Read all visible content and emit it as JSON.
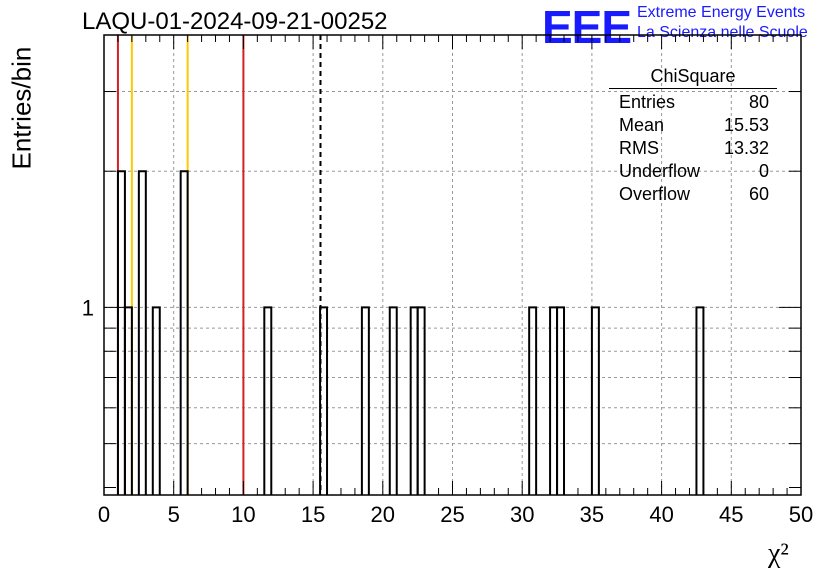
{
  "title": "LAQU-01-2024-09-21-00252",
  "logo": {
    "letters": "EEE",
    "line1": "Extreme Energy Events",
    "line2": "La Scienza nelle Scuole"
  },
  "stats_box": {
    "name": "ChiSquare",
    "rows": [
      {
        "label": "Entries",
        "value": "80"
      },
      {
        "label": "Mean",
        "value": "15.53"
      },
      {
        "label": "RMS",
        "value": "13.32"
      },
      {
        "label": "Underflow",
        "value": "0"
      },
      {
        "label": "Overflow",
        "value": "60"
      }
    ]
  },
  "chart_data": {
    "type": "bar",
    "histogram": "step",
    "title": "LAQU-01-2024-09-21-00252",
    "xlabel": "χ²",
    "ylabel": "Entries/bin",
    "xlim": [
      0,
      50
    ],
    "ylim": [
      0.385,
      4.0
    ],
    "y_log_scale": true,
    "grid": true,
    "x_ticks": [
      0,
      5,
      10,
      15,
      20,
      25,
      30,
      35,
      40,
      45,
      50
    ],
    "y_tick_labels": [
      1
    ],
    "bin_width": 0.5,
    "bins": [
      {
        "x": 1.0,
        "count": 2
      },
      {
        "x": 1.5,
        "count": 1
      },
      {
        "x": 2.5,
        "count": 2
      },
      {
        "x": 3.5,
        "count": 1
      },
      {
        "x": 5.5,
        "count": 2
      },
      {
        "x": 11.5,
        "count": 1
      },
      {
        "x": 15.5,
        "count": 1
      },
      {
        "x": 18.5,
        "count": 1
      },
      {
        "x": 20.5,
        "count": 1
      },
      {
        "x": 22.0,
        "count": 1
      },
      {
        "x": 22.5,
        "count": 1
      },
      {
        "x": 30.5,
        "count": 1
      },
      {
        "x": 32.0,
        "count": 1
      },
      {
        "x": 32.5,
        "count": 1
      },
      {
        "x": 35.0,
        "count": 1
      },
      {
        "x": 42.5,
        "count": 1
      }
    ],
    "vertical_lines": [
      {
        "x": 1.0,
        "color": "#d42020",
        "style": "solid"
      },
      {
        "x": 2.0,
        "color": "#ffc800",
        "style": "solid"
      },
      {
        "x": 6.0,
        "color": "#ffc800",
        "style": "solid"
      },
      {
        "x": 10.0,
        "color": "#d42020",
        "style": "solid"
      },
      {
        "x": 15.53,
        "color": "#000000",
        "style": "dashed"
      }
    ]
  }
}
